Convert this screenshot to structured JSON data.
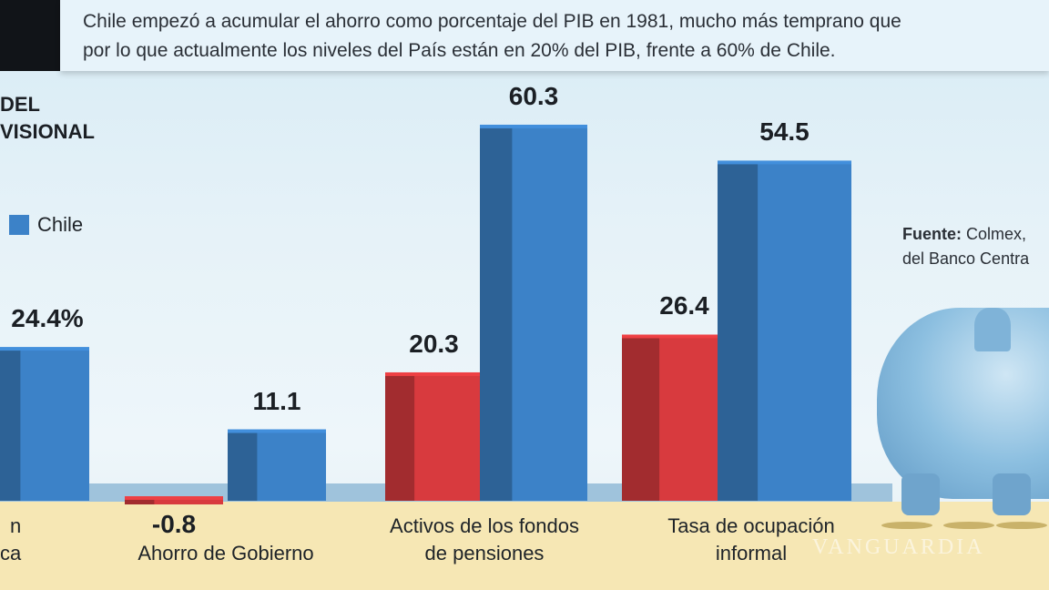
{
  "header": {
    "line1": "Chile empezó a acumular el ahorro como porcentaje del PIB en 1981, mucho más temprano que",
    "line2": "por lo que actualmente los niveles del País están en 20% del PIB, frente a 60% de Chile."
  },
  "source": {
    "label": "Fuente:",
    "line1": "Colmex,",
    "line2": "del Banco Centra"
  },
  "watermark": "VANGUARDIA",
  "chart_data": {
    "type": "bar",
    "title_fragment": [
      "DEL",
      "VISIONAL"
    ],
    "legend": [
      "Chile"
    ],
    "colors": {
      "mexico": "#d83a3e",
      "chile": "#3c82c8"
    },
    "categories": [
      "n\nca",
      "Ahorro de Gobierno",
      "Activos de los fondos\nde pensiones",
      "Tasa de ocupación\ninformal"
    ],
    "series": [
      {
        "values": [
          null,
          -0.8,
          20.3,
          26.4
        ],
        "labels": [
          "",
          "-0.8",
          "20.3",
          "26.4"
        ],
        "color": "#d83a3e"
      },
      {
        "name": "Chile",
        "values": [
          24.4,
          11.1,
          60.3,
          54.5
        ],
        "labels": [
          "24.4%",
          "11.1",
          "60.3",
          "54.5"
        ],
        "color": "#3c82c8"
      }
    ]
  }
}
